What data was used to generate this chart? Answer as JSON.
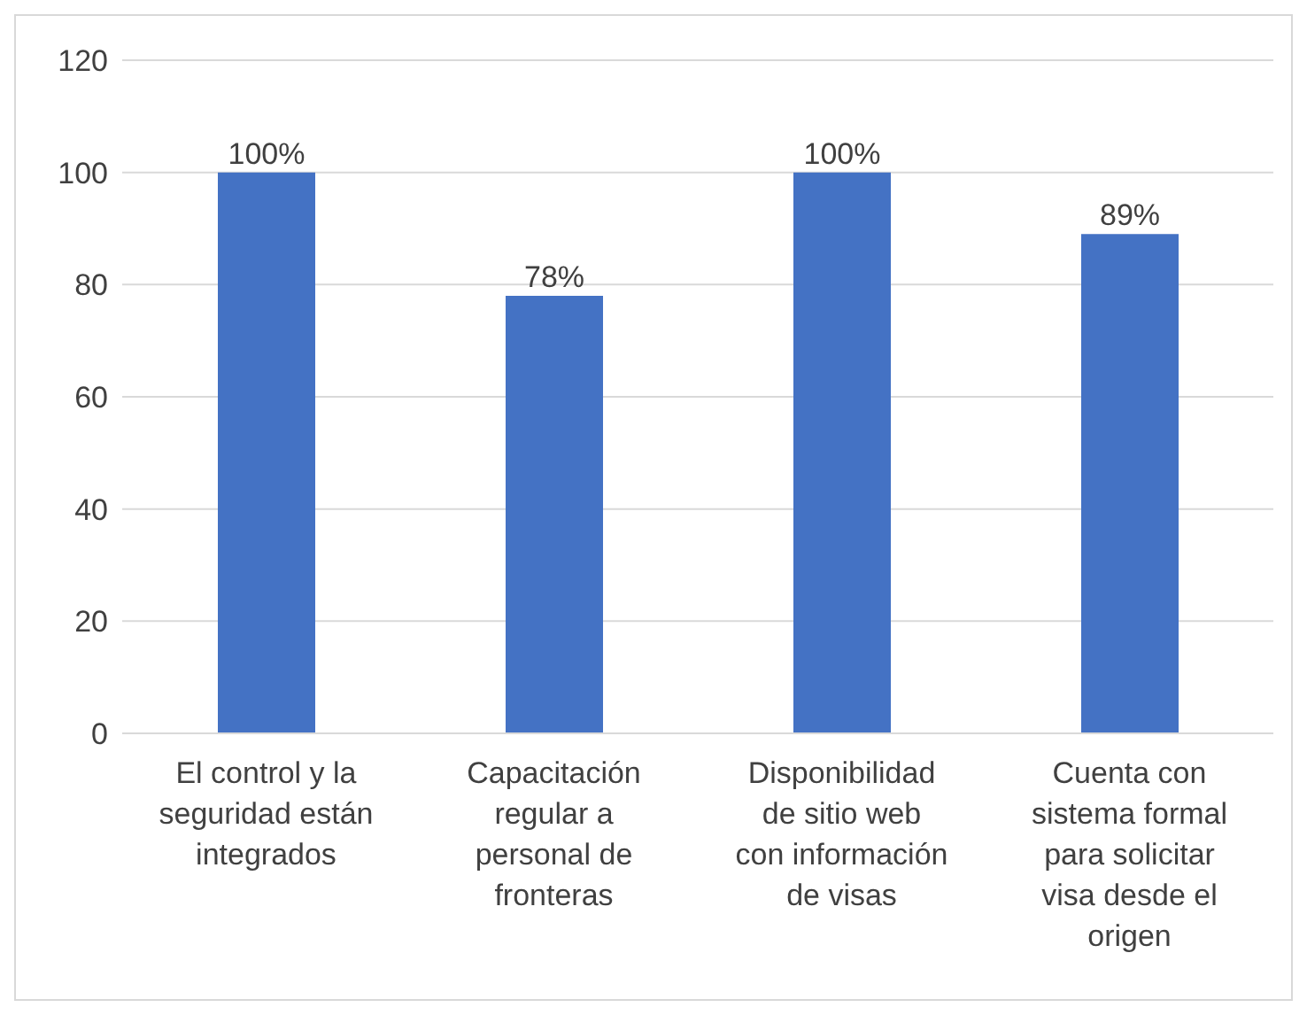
{
  "chart_data": {
    "type": "bar",
    "categories": [
      "El control y la seguridad están integrados",
      "Capacitación regular a personal de fronteras",
      "Disponibilidad de sitio web con información de visas",
      "Cuenta con sistema formal para solicitar visa desde el origen"
    ],
    "values": [
      100,
      78,
      100,
      89
    ],
    "value_labels": [
      "100%",
      "78%",
      "100%",
      "89%"
    ],
    "color": "#4472c4",
    "ylim": [
      0,
      120
    ],
    "yticks": [
      0,
      20,
      40,
      60,
      80,
      100,
      120
    ],
    "grid": "y"
  }
}
